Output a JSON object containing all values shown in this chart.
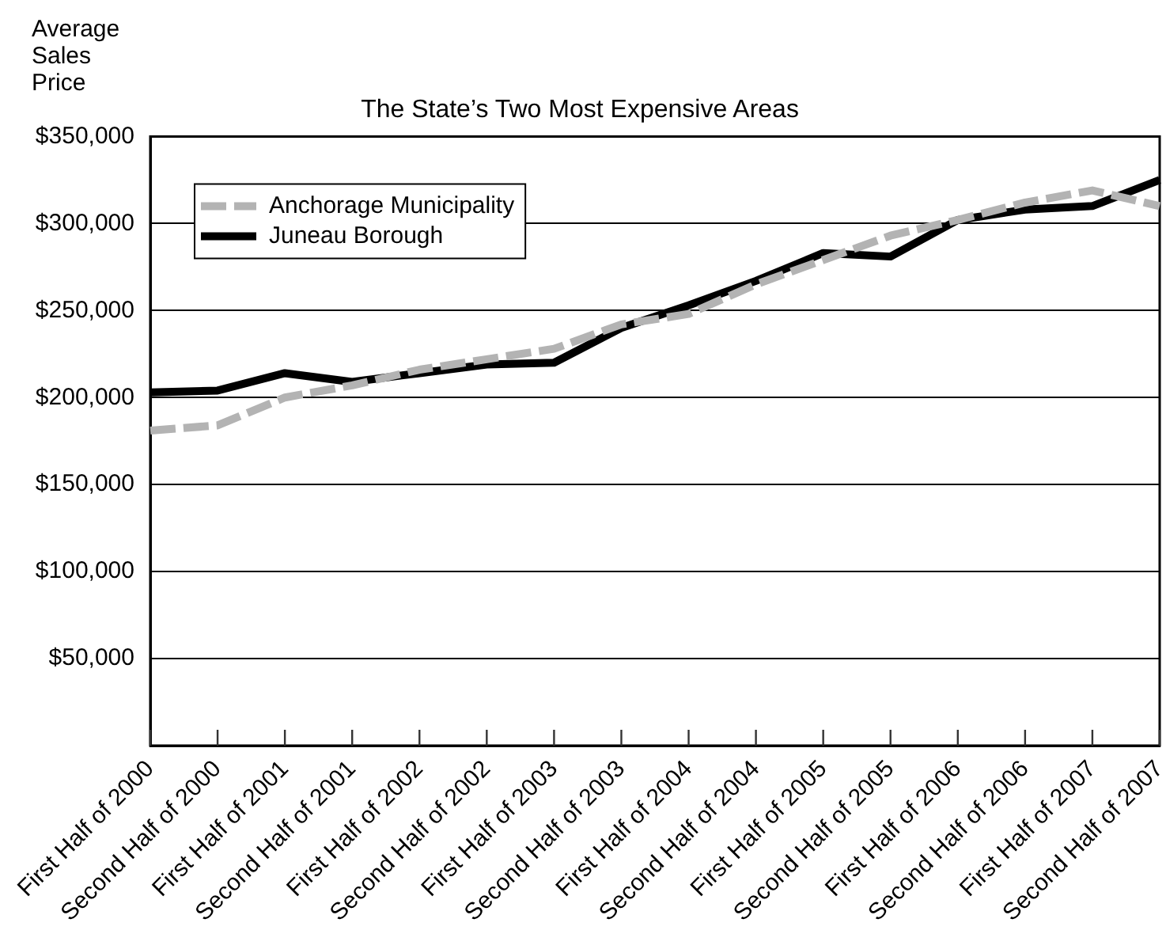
{
  "chart_data": {
    "type": "line",
    "title": "The State’s Two Most Expensive Areas",
    "ylabel": "Average Sales Price",
    "categories": [
      "First Half of 2000",
      "Second Half of 2000",
      "First Half of 2001",
      "Second Half of 2001",
      "First Half of 2002",
      "Second Half of 2002",
      "First Half of 2003",
      "Second Half of 2003",
      "First Half of 2004",
      "Second Half of 2004",
      "First Half of 2005",
      "Second Half of 2005",
      "First Half of 2006",
      "Second Half of 2006",
      "First Half of 2007",
      "Second Half of 2007"
    ],
    "series": [
      {
        "name": "Anchorage Municipality",
        "color": "#b3b3b3",
        "line_style": "dashed",
        "values": [
          181000,
          184000,
          200000,
          207000,
          216000,
          222000,
          228000,
          242000,
          248000,
          265000,
          279000,
          293000,
          302000,
          312000,
          319000,
          310000
        ]
      },
      {
        "name": "Juneau Borough",
        "color": "#000000",
        "line_style": "solid",
        "values": [
          203000,
          204000,
          214000,
          209000,
          214000,
          219000,
          220000,
          240000,
          253000,
          267000,
          283000,
          281000,
          302000,
          308000,
          310000,
          325000
        ]
      }
    ],
    "ylim": [
      0,
      350000
    ],
    "yticks": [
      {
        "value": 50000,
        "label": "$50,000"
      },
      {
        "value": 100000,
        "label": "$100,000"
      },
      {
        "value": 150000,
        "label": "$150,000"
      },
      {
        "value": 200000,
        "label": "$200,000"
      },
      {
        "value": 250000,
        "label": "$250,000"
      },
      {
        "value": 300000,
        "label": "$300,000"
      },
      {
        "value": 350000,
        "label": "$350,000"
      }
    ],
    "grid": "y",
    "legend": "top left",
    "marker": "none"
  }
}
